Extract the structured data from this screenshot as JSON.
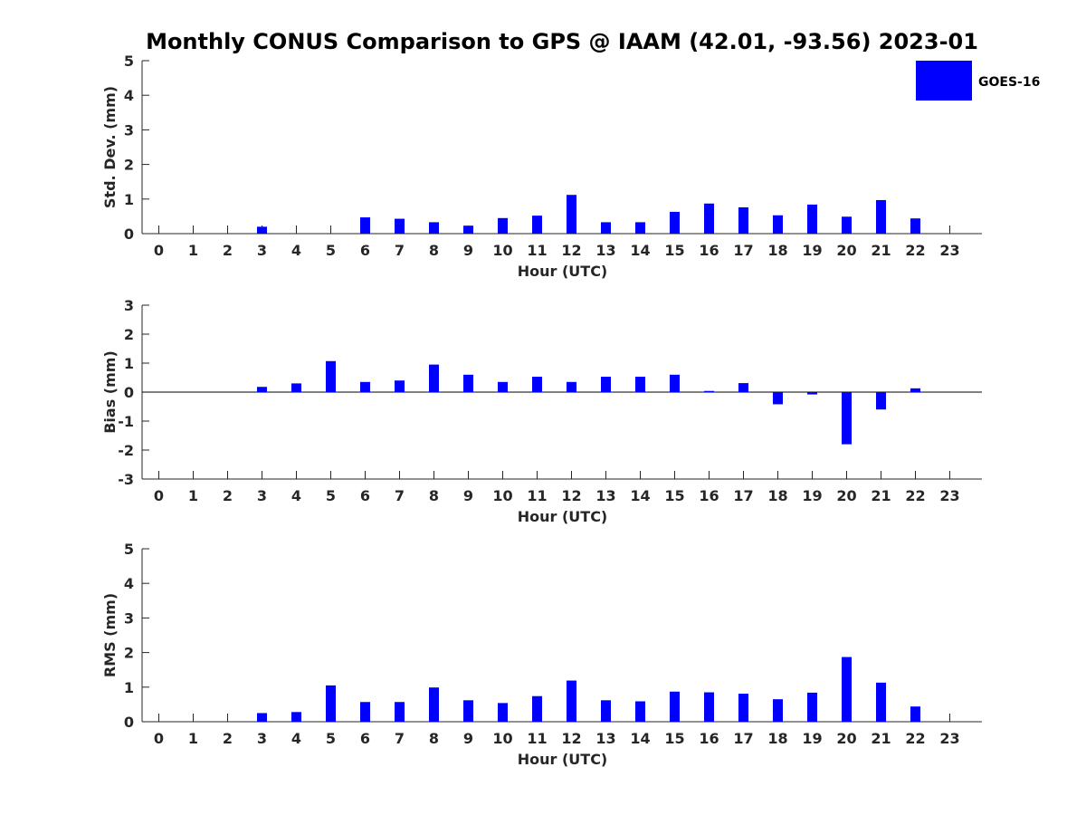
{
  "chart_data": {
    "type": "bar",
    "title": "Monthly CONUS Comparison to GPS @ IAAM (42.01, -93.56) 2023-01",
    "legend": {
      "label": "GOES-16",
      "color": "#0000ff",
      "placement": "top-right"
    },
    "categories": [
      "0",
      "1",
      "2",
      "3",
      "4",
      "5",
      "6",
      "7",
      "8",
      "9",
      "10",
      "11",
      "12",
      "13",
      "14",
      "15",
      "16",
      "17",
      "18",
      "19",
      "20",
      "21",
      "22",
      "23"
    ],
    "panels": [
      {
        "name": "std-dev",
        "ylabel": "Std. Dev. (mm)",
        "xlabel": "Hour (UTC)",
        "ylim": [
          0,
          5
        ],
        "yticks": [
          0,
          1,
          2,
          3,
          4,
          5
        ],
        "series": [
          {
            "name": "GOES-16",
            "values": [
              null,
              null,
              null,
              0.2,
              null,
              null,
              0.47,
              0.43,
              0.33,
              0.23,
              0.45,
              0.52,
              1.12,
              0.33,
              0.33,
              0.63,
              0.87,
              0.76,
              0.53,
              0.84,
              0.49,
              0.97,
              0.44,
              null
            ]
          }
        ]
      },
      {
        "name": "bias",
        "ylabel": "Bias (mm)",
        "xlabel": "Hour (UTC)",
        "ylim": [
          -3,
          3
        ],
        "yticks": [
          -3,
          -2,
          -1,
          0,
          1,
          2,
          3
        ],
        "series": [
          {
            "name": "GOES-16",
            "values": [
              null,
              null,
              null,
              0.18,
              0.3,
              1.07,
              0.35,
              0.4,
              0.95,
              0.6,
              0.35,
              0.53,
              0.35,
              0.53,
              0.53,
              0.6,
              0.04,
              0.31,
              -0.42,
              -0.08,
              -1.8,
              -0.6,
              0.13,
              null
            ]
          }
        ]
      },
      {
        "name": "rms",
        "ylabel": "RMS (mm)",
        "xlabel": "Hour (UTC)",
        "ylim": [
          0,
          5
        ],
        "yticks": [
          0,
          1,
          2,
          3,
          4,
          5
        ],
        "series": [
          {
            "name": "GOES-16",
            "values": [
              null,
              null,
              null,
              0.25,
              0.28,
              1.05,
              0.57,
              0.57,
              0.99,
              0.62,
              0.54,
              0.74,
              1.19,
              0.62,
              0.59,
              0.87,
              0.85,
              0.81,
              0.65,
              0.84,
              1.87,
              1.13,
              0.44,
              null
            ]
          }
        ]
      }
    ]
  }
}
